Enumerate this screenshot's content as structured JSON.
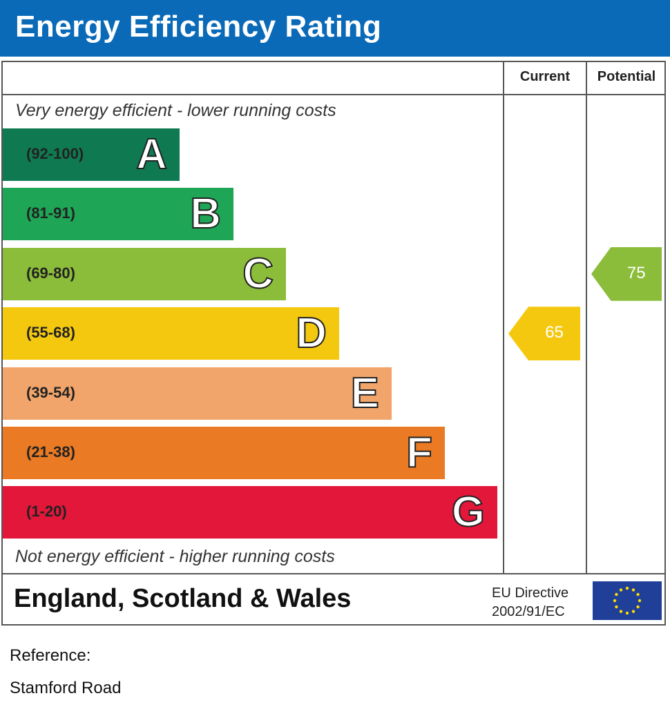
{
  "header": {
    "title": "Energy Efficiency Rating"
  },
  "columns": {
    "current": "Current",
    "potential": "Potential"
  },
  "captions": {
    "top": "Very energy efficient - lower running costs",
    "bottom": "Not energy efficient - higher running costs"
  },
  "chart_data": {
    "type": "bar",
    "title": "Energy Efficiency Rating",
    "categories": [
      "A",
      "B",
      "C",
      "D",
      "E",
      "F",
      "G"
    ],
    "ranges": [
      "(92-100)",
      "(81-91)",
      "(69-80)",
      "(55-68)",
      "(39-54)",
      "(21-38)",
      "(1-20)"
    ],
    "colors": [
      "#0f7a52",
      "#1ea556",
      "#8bbd3a",
      "#f4c80f",
      "#f2a56b",
      "#ea7a23",
      "#e2173a"
    ],
    "current": {
      "value": 65,
      "band": "D",
      "color": "#f4c80f"
    },
    "potential": {
      "value": 75,
      "band": "C",
      "color": "#8bbd3a"
    }
  },
  "footer": {
    "region": "England, Scotland & Wales",
    "eu_line1": "EU Directive",
    "eu_line2": "2002/91/EC"
  },
  "reference": {
    "label": "Reference:",
    "value": "Stamford Road"
  }
}
